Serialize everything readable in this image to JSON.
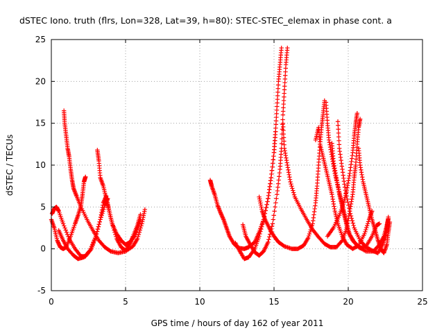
{
  "chart_data": {
    "type": "scatter",
    "title": "dSTEC Iono. truth (flrs, Lon=328, Lat=39, h=80): STEC-STEC_elemax in phase cont. a",
    "xlabel": "GPS time / hours of day 162 of year 2011",
    "ylabel": "dSTEC  / TECUs",
    "xlim": [
      0,
      25
    ],
    "ylim": [
      -5,
      25
    ],
    "xticks": [
      0,
      5,
      10,
      15,
      20,
      25
    ],
    "yticks": [
      -5,
      0,
      5,
      10,
      15,
      20,
      25
    ],
    "xtick_labels": [
      "0",
      "5",
      "10",
      "15",
      "20",
      "25"
    ],
    "ytick_labels": [
      "-5",
      "0",
      "5",
      "10",
      "15",
      "20",
      "25"
    ],
    "grid": true,
    "marker": "+",
    "color": "#ff0000",
    "series": [
      {
        "points": [
          [
            0.0,
            3.5
          ],
          [
            0.2,
            2.5
          ],
          [
            0.4,
            1.0
          ],
          [
            0.6,
            0.2
          ],
          [
            0.8,
            0.0
          ],
          [
            1.0,
            0.2
          ],
          [
            1.3,
            1.5
          ],
          [
            1.6,
            3.0
          ],
          [
            1.8,
            4.0
          ],
          [
            2.0,
            5.2
          ],
          [
            2.1,
            6.5
          ],
          [
            2.2,
            8.0
          ],
          [
            2.3,
            8.6
          ]
        ]
      },
      {
        "points": [
          [
            0.05,
            4.2
          ],
          [
            0.2,
            4.8
          ],
          [
            0.35,
            5.0
          ],
          [
            0.5,
            4.5
          ],
          [
            0.8,
            3.0
          ],
          [
            1.2,
            1.2
          ],
          [
            1.6,
            0.0
          ],
          [
            2.0,
            -0.9
          ],
          [
            2.3,
            -0.9
          ],
          [
            2.7,
            0.0
          ],
          [
            3.0,
            1.5
          ],
          [
            3.3,
            3.5
          ],
          [
            3.6,
            5.2
          ],
          [
            3.8,
            6.0
          ]
        ]
      },
      {
        "points": [
          [
            0.85,
            16.5
          ],
          [
            0.9,
            15.0
          ],
          [
            1.0,
            13.5
          ],
          [
            1.1,
            12.0
          ],
          [
            1.2,
            11.0
          ],
          [
            1.3,
            9.5
          ],
          [
            1.4,
            8.2
          ],
          [
            1.5,
            7.2
          ],
          [
            1.7,
            6.3
          ],
          [
            2.0,
            5.0
          ],
          [
            2.4,
            3.5
          ],
          [
            2.8,
            2.2
          ],
          [
            3.2,
            1.0
          ],
          [
            3.6,
            0.2
          ],
          [
            4.0,
            -0.3
          ],
          [
            4.5,
            -0.5
          ],
          [
            5.0,
            -0.3
          ],
          [
            5.5,
            0.3
          ],
          [
            5.8,
            1.2
          ],
          [
            6.1,
            3.0
          ],
          [
            6.3,
            4.7
          ]
        ]
      },
      {
        "points": [
          [
            0.5,
            2.2
          ],
          [
            0.8,
            1.0
          ],
          [
            1.1,
            0.0
          ],
          [
            1.5,
            -0.8
          ],
          [
            1.8,
            -1.2
          ],
          [
            2.2,
            -1.0
          ],
          [
            2.6,
            -0.2
          ],
          [
            3.0,
            1.5
          ],
          [
            3.3,
            3.5
          ],
          [
            3.5,
            5.5
          ],
          [
            3.7,
            6.3
          ],
          [
            3.9,
            4.5
          ],
          [
            4.1,
            3.0
          ],
          [
            4.4,
            1.2
          ],
          [
            4.7,
            0.2
          ],
          [
            5.0,
            -0.2
          ],
          [
            5.3,
            0.6
          ],
          [
            5.5,
            1.5
          ],
          [
            5.8,
            2.8
          ],
          [
            6.0,
            4.1
          ]
        ]
      },
      {
        "points": [
          [
            3.1,
            11.8
          ],
          [
            3.2,
            10.5
          ],
          [
            3.3,
            8.5
          ],
          [
            3.5,
            7.5
          ],
          [
            3.7,
            6.0
          ],
          [
            3.9,
            4.5
          ],
          [
            4.1,
            3.0
          ],
          [
            4.4,
            1.8
          ],
          [
            4.7,
            1.0
          ],
          [
            5.0,
            0.5
          ],
          [
            5.3,
            0.8
          ],
          [
            5.6,
            1.5
          ],
          [
            5.8,
            2.5
          ],
          [
            6.0,
            3.5
          ]
        ]
      },
      {
        "points": [
          [
            10.7,
            8.2
          ],
          [
            10.8,
            7.5
          ],
          [
            11.0,
            6.5
          ],
          [
            11.2,
            5.2
          ],
          [
            11.4,
            4.3
          ],
          [
            11.6,
            3.5
          ],
          [
            11.8,
            2.5
          ],
          [
            12.0,
            1.5
          ],
          [
            12.3,
            0.6
          ],
          [
            12.6,
            0.1
          ],
          [
            13.0,
            0.0
          ],
          [
            13.3,
            0.2
          ],
          [
            13.7,
            0.8
          ],
          [
            14.0,
            2.0
          ],
          [
            14.3,
            3.5
          ],
          [
            14.6,
            6.0
          ],
          [
            14.8,
            8.5
          ],
          [
            15.0,
            11.5
          ],
          [
            15.1,
            14.0
          ],
          [
            15.2,
            17.0
          ],
          [
            15.3,
            20.0
          ],
          [
            15.4,
            22.0
          ],
          [
            15.5,
            24.0
          ]
        ]
      },
      {
        "points": [
          [
            12.9,
            2.9
          ],
          [
            13.1,
            1.5
          ],
          [
            13.4,
            0.5
          ],
          [
            13.7,
            -0.4
          ],
          [
            14.0,
            -0.8
          ],
          [
            14.3,
            -0.3
          ],
          [
            14.6,
            0.8
          ],
          [
            14.9,
            3.0
          ],
          [
            15.2,
            6.5
          ],
          [
            15.4,
            9.5
          ],
          [
            15.5,
            12.0
          ],
          [
            15.6,
            16.0
          ],
          [
            15.7,
            19.0
          ],
          [
            15.8,
            22.0
          ],
          [
            15.9,
            24.0
          ]
        ]
      },
      {
        "points": [
          [
            12.4,
            0.7
          ],
          [
            12.7,
            -0.3
          ],
          [
            13.0,
            -1.2
          ],
          [
            13.3,
            -1.0
          ],
          [
            13.7,
            0.0
          ],
          [
            14.0,
            1.5
          ],
          [
            14.3,
            3.5
          ],
          [
            14.6,
            6.0
          ],
          [
            14.8,
            8.5
          ],
          [
            15.0,
            11.5
          ],
          [
            15.1,
            14.0
          ]
        ]
      },
      {
        "points": [
          [
            14.0,
            6.2
          ],
          [
            14.2,
            4.5
          ],
          [
            14.4,
            3.5
          ],
          [
            14.7,
            2.4
          ],
          [
            15.0,
            1.5
          ],
          [
            15.3,
            0.8
          ],
          [
            15.7,
            0.3
          ],
          [
            16.2,
            0.0
          ],
          [
            16.6,
            0.0
          ],
          [
            17.0,
            0.4
          ],
          [
            17.3,
            1.3
          ],
          [
            17.6,
            3.0
          ],
          [
            17.8,
            5.5
          ],
          [
            17.9,
            7.5
          ],
          [
            18.0,
            10.0
          ],
          [
            18.1,
            12.5
          ],
          [
            18.2,
            14.5
          ],
          [
            18.3,
            16.0
          ],
          [
            18.4,
            17.7
          ]
        ]
      },
      {
        "points": [
          [
            15.6,
            15.0
          ],
          [
            15.7,
            12.0
          ],
          [
            15.9,
            10.0
          ],
          [
            16.1,
            8.0
          ],
          [
            16.4,
            6.2
          ],
          [
            16.8,
            4.8
          ],
          [
            17.2,
            3.5
          ],
          [
            17.6,
            2.3
          ],
          [
            18.0,
            1.4
          ],
          [
            18.4,
            0.6
          ],
          [
            18.8,
            0.2
          ],
          [
            19.2,
            0.2
          ],
          [
            19.6,
            1.0
          ],
          [
            19.9,
            2.5
          ],
          [
            20.1,
            4.5
          ],
          [
            20.3,
            6.5
          ],
          [
            20.4,
            8.5
          ],
          [
            20.5,
            10.0
          ],
          [
            20.6,
            12.5
          ],
          [
            20.7,
            14.5
          ],
          [
            20.8,
            15.5
          ]
        ]
      },
      {
        "points": [
          [
            18.5,
            17.5
          ],
          [
            18.6,
            15.0
          ],
          [
            18.7,
            13.0
          ],
          [
            18.9,
            11.0
          ],
          [
            19.1,
            9.0
          ],
          [
            19.3,
            7.5
          ],
          [
            19.5,
            6.0
          ],
          [
            19.7,
            4.5
          ],
          [
            19.9,
            3.0
          ],
          [
            20.1,
            1.7
          ],
          [
            20.4,
            0.8
          ],
          [
            20.8,
            0.1
          ],
          [
            21.2,
            0.3
          ],
          [
            21.6,
            1.5
          ],
          [
            21.9,
            2.8
          ],
          [
            22.1,
            3.0
          ]
        ]
      },
      {
        "points": [
          [
            17.8,
            13.0
          ],
          [
            18.0,
            14.5
          ],
          [
            18.1,
            12.5
          ],
          [
            18.3,
            11.0
          ],
          [
            18.5,
            9.5
          ],
          [
            18.7,
            8.0
          ],
          [
            18.9,
            6.5
          ],
          [
            19.1,
            4.5
          ],
          [
            19.3,
            3.0
          ],
          [
            19.6,
            1.5
          ],
          [
            19.9,
            0.5
          ],
          [
            20.3,
            0.0
          ],
          [
            20.7,
            0.4
          ],
          [
            21.1,
            1.8
          ],
          [
            21.4,
            3.5
          ],
          [
            21.6,
            4.5
          ]
        ]
      },
      {
        "points": [
          [
            18.9,
            12.6
          ],
          [
            19.0,
            10.5
          ],
          [
            19.2,
            8.5
          ],
          [
            19.4,
            6.5
          ],
          [
            19.6,
            5.0
          ],
          [
            19.8,
            3.5
          ],
          [
            20.0,
            2.0
          ],
          [
            20.3,
            1.0
          ],
          [
            20.7,
            0.2
          ],
          [
            21.2,
            -0.3
          ],
          [
            21.7,
            -0.3
          ],
          [
            22.1,
            0.5
          ],
          [
            22.4,
            1.5
          ],
          [
            22.6,
            2.8
          ],
          [
            22.7,
            3.6
          ]
        ]
      },
      {
        "points": [
          [
            19.3,
            15.2
          ],
          [
            19.4,
            12.0
          ],
          [
            19.6,
            9.5
          ],
          [
            19.8,
            7.0
          ],
          [
            20.1,
            4.5
          ],
          [
            20.4,
            2.5
          ],
          [
            20.8,
            1.0
          ],
          [
            21.2,
            0.2
          ],
          [
            21.6,
            -0.2
          ],
          [
            22.0,
            -0.5
          ],
          [
            22.3,
            0.5
          ],
          [
            22.5,
            1.5
          ],
          [
            22.6,
            2.5
          ],
          [
            22.7,
            3.8
          ]
        ]
      },
      {
        "points": [
          [
            18.6,
            1.5
          ],
          [
            19.0,
            2.5
          ],
          [
            19.4,
            4.0
          ],
          [
            19.7,
            5.5
          ],
          [
            19.9,
            7.0
          ],
          [
            20.1,
            9.0
          ],
          [
            20.3,
            11.5
          ],
          [
            20.4,
            13.5
          ],
          [
            20.5,
            15.0
          ],
          [
            20.6,
            16.2
          ]
        ]
      },
      {
        "points": [
          [
            20.7,
            12.0
          ],
          [
            20.8,
            10.0
          ],
          [
            21.0,
            8.0
          ],
          [
            21.2,
            6.5
          ],
          [
            21.4,
            5.0
          ],
          [
            21.6,
            3.5
          ],
          [
            21.8,
            2.3
          ],
          [
            22.0,
            1.0
          ],
          [
            22.2,
            0.0
          ],
          [
            22.4,
            -0.5
          ],
          [
            22.6,
            0.5
          ],
          [
            22.7,
            2.0
          ],
          [
            22.8,
            3.2
          ]
        ]
      }
    ]
  }
}
